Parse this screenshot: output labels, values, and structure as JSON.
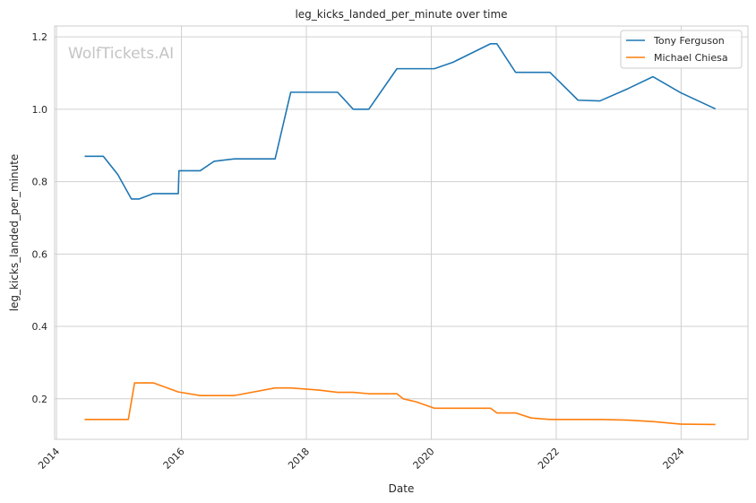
{
  "chart_data": {
    "type": "line",
    "title": "leg_kicks_landed_per_minute over time",
    "xlabel": "Date",
    "ylabel": "leg_kicks_landed_per_minute",
    "watermark": "WolfTickets.AI",
    "xlim": [
      2013.97,
      2025.07
    ],
    "ylim": [
      0.088,
      1.23
    ],
    "x_ticks": [
      2014,
      2016,
      2018,
      2020,
      2022,
      2024
    ],
    "x_tick_labels": [
      "2014",
      "2016",
      "2018",
      "2020",
      "2022",
      "2024"
    ],
    "y_ticks": [
      0.2,
      0.4,
      0.6,
      0.8,
      1.0,
      1.2
    ],
    "y_tick_labels": [
      "0.2",
      "0.4",
      "0.6",
      "0.8",
      "1.0",
      "1.2"
    ],
    "grid": true,
    "legend_position": "top-right",
    "series": [
      {
        "name": "Tony Ferguson",
        "color": "#1f77b4",
        "x": [
          2014.45,
          2014.75,
          2014.98,
          2015.2,
          2015.32,
          2015.55,
          2015.95,
          2015.96,
          2016.3,
          2016.52,
          2016.85,
          2017.5,
          2017.75,
          2018.2,
          2018.5,
          2018.75,
          2019.0,
          2019.45,
          2019.75,
          2020.05,
          2020.35,
          2020.95,
          2021.05,
          2021.35,
          2021.9,
          2022.35,
          2022.7,
          2023.15,
          2023.55,
          2024.0,
          2024.55
        ],
        "y": [
          0.87,
          0.87,
          0.82,
          0.752,
          0.752,
          0.767,
          0.767,
          0.83,
          0.83,
          0.856,
          0.863,
          0.863,
          1.047,
          1.047,
          1.047,
          1.0,
          1.0,
          1.112,
          1.112,
          1.112,
          1.13,
          1.181,
          1.181,
          1.102,
          1.102,
          1.025,
          1.023,
          1.057,
          1.09,
          1.045,
          1.001
        ]
      },
      {
        "name": "Michael Chiesa",
        "color": "#ff7f0e",
        "x": [
          2014.45,
          2014.75,
          2015.15,
          2015.25,
          2015.35,
          2015.55,
          2015.95,
          2016.3,
          2016.85,
          2017.5,
          2017.75,
          2018.2,
          2018.5,
          2018.75,
          2019.0,
          2019.45,
          2019.55,
          2019.75,
          2020.05,
          2020.35,
          2020.95,
          2021.05,
          2021.35,
          2021.6,
          2021.9,
          2022.35,
          2022.7,
          2023.15,
          2023.55,
          2024.0,
          2024.55
        ],
        "y": [
          0.143,
          0.143,
          0.143,
          0.244,
          0.244,
          0.244,
          0.219,
          0.209,
          0.209,
          0.23,
          0.23,
          0.224,
          0.218,
          0.218,
          0.214,
          0.214,
          0.2,
          0.192,
          0.174,
          0.174,
          0.174,
          0.161,
          0.161,
          0.147,
          0.143,
          0.143,
          0.143,
          0.141,
          0.137,
          0.13,
          0.129
        ]
      }
    ]
  }
}
